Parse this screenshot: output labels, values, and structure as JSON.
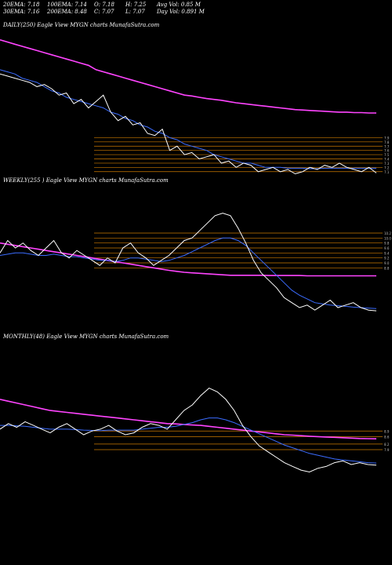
{
  "header": {
    "row1": {
      "ema20": "20EMA: 7.18",
      "ema100": "100EMA: 7.14",
      "open": "O: 7.18",
      "high": "H: 7.25",
      "avgvol": "Avg Vol: 0.85 M"
    },
    "row2": {
      "ema30": "30EMA: 7.16",
      "ema200": "200EMA: 8.48",
      "close": "C: 7.07",
      "low": "L: 7.07",
      "dayvol": "Day Vol: 0.891 M"
    }
  },
  "panels": [
    {
      "id": "daily",
      "label": "DAILY(250) Eagle  View  MYGN  charts MunafaSutra.com"
    },
    {
      "id": "weekly",
      "label": "WEEKLY(255                    ) Eagle  View  MYGN  charts MunafaSutra.com"
    },
    {
      "id": "monthly",
      "label": "MONTHLY(48) Eagle  View  MYGN  charts MunafaSutra.com"
    }
  ],
  "colors": {
    "background": "#000000",
    "price": "#ffffff",
    "ema_short": "#3b6cff",
    "ema_long": "#ff44ff",
    "ema_mid": "#d2a679",
    "level": "#cc7a00"
  },
  "chart_data": [
    {
      "type": "line",
      "title": "DAILY(250) Eagle  View  MYGN  charts MunafaSutra.com",
      "series": [
        {
          "values": [
            9.4,
            9.35,
            9.3,
            9.25,
            9.2,
            9.1,
            9.15,
            9.05,
            8.9,
            8.95,
            8.7,
            8.8,
            8.6,
            8.75,
            8.9,
            8.5,
            8.3,
            8.4,
            8.2,
            8.25,
            8.0,
            7.95,
            8.1,
            7.6,
            7.7,
            7.5,
            7.55,
            7.4,
            7.45,
            7.5,
            7.3,
            7.35,
            7.2,
            7.3,
            7.25,
            7.1,
            7.15,
            7.2,
            7.1,
            7.15,
            7.05,
            7.1,
            7.2,
            7.15,
            7.25,
            7.2,
            7.3,
            7.2,
            7.15,
            7.1,
            7.2,
            7.07
          ]
        },
        {
          "values": [
            9.5,
            9.45,
            9.4,
            9.3,
            9.25,
            9.2,
            9.1,
            9.0,
            8.95,
            8.85,
            8.8,
            8.75,
            8.7,
            8.65,
            8.6,
            8.5,
            8.45,
            8.35,
            8.3,
            8.2,
            8.15,
            8.05,
            8.0,
            7.9,
            7.85,
            7.75,
            7.7,
            7.65,
            7.6,
            7.5,
            7.45,
            7.4,
            7.35,
            7.3,
            7.3,
            7.25,
            7.2,
            7.2,
            7.2,
            7.18,
            7.18,
            7.18,
            7.17,
            7.17,
            7.18,
            7.18,
            7.18,
            7.18,
            7.18,
            7.18,
            7.18,
            7.18
          ]
        },
        {
          "values": [
            10.2,
            10.15,
            10.1,
            10.05,
            10.0,
            9.95,
            9.9,
            9.85,
            9.8,
            9.75,
            9.7,
            9.65,
            9.6,
            9.5,
            9.45,
            9.4,
            9.35,
            9.3,
            9.25,
            9.2,
            9.15,
            9.1,
            9.05,
            9.0,
            8.95,
            8.9,
            8.88,
            8.85,
            8.82,
            8.8,
            8.78,
            8.75,
            8.72,
            8.7,
            8.68,
            8.66,
            8.64,
            8.62,
            8.6,
            8.58,
            8.56,
            8.55,
            8.54,
            8.53,
            8.52,
            8.51,
            8.5,
            8.5,
            8.49,
            8.49,
            8.48,
            8.48
          ]
        }
      ],
      "levels": [
        7.9,
        7.8,
        7.7,
        7.6,
        7.5,
        7.4,
        7.3,
        7.2,
        7.1
      ],
      "ylim": [
        6.8,
        10.4
      ]
    },
    {
      "type": "line",
      "title": "WEEKLY(255                    ) Eagle  View  MYGN  charts MunafaSutra.com",
      "series": [
        {
          "values": [
            9.4,
            9.9,
            9.6,
            9.8,
            9.5,
            9.3,
            9.6,
            9.9,
            9.4,
            9.2,
            9.5,
            9.3,
            9.1,
            8.9,
            9.2,
            9.0,
            9.6,
            9.8,
            9.4,
            9.2,
            8.9,
            9.1,
            9.3,
            9.6,
            9.9,
            10.0,
            10.3,
            10.6,
            10.9,
            11.0,
            10.9,
            10.4,
            9.8,
            9.1,
            8.6,
            8.3,
            8.0,
            7.6,
            7.4,
            7.2,
            7.3,
            7.1,
            7.3,
            7.5,
            7.2,
            7.3,
            7.4,
            7.2,
            7.1,
            7.07
          ]
        },
        {
          "values": [
            9.3,
            9.35,
            9.4,
            9.4,
            9.35,
            9.3,
            9.3,
            9.35,
            9.3,
            9.25,
            9.25,
            9.2,
            9.15,
            9.1,
            9.1,
            9.05,
            9.1,
            9.2,
            9.2,
            9.15,
            9.1,
            9.05,
            9.1,
            9.2,
            9.3,
            9.45,
            9.6,
            9.75,
            9.9,
            10.0,
            10.0,
            9.9,
            9.7,
            9.4,
            9.1,
            8.8,
            8.5,
            8.2,
            7.9,
            7.7,
            7.55,
            7.4,
            7.35,
            7.3,
            7.28,
            7.25,
            7.22,
            7.2,
            7.18,
            7.16
          ]
        },
        {
          "values": [
            9.8,
            9.75,
            9.7,
            9.65,
            9.6,
            9.55,
            9.5,
            9.45,
            9.4,
            9.35,
            9.3,
            9.25,
            9.2,
            9.15,
            9.1,
            9.05,
            9.0,
            8.95,
            8.9,
            8.85,
            8.8,
            8.75,
            8.7,
            8.66,
            8.62,
            8.6,
            8.58,
            8.56,
            8.54,
            8.52,
            8.5,
            8.5,
            8.5,
            8.5,
            8.5,
            8.49,
            8.49,
            8.49,
            8.49,
            8.49,
            8.48,
            8.48,
            8.48,
            8.48,
            8.48,
            8.48,
            8.48,
            8.48,
            8.48,
            8.48
          ]
        }
      ],
      "levels": [
        10.2,
        10.0,
        9.8,
        9.6,
        9.4,
        9.2,
        9.0,
        8.8
      ],
      "ylim": [
        6.0,
        12.0
      ]
    },
    {
      "type": "line",
      "title": "MONTHLY(48) Eagle  View  MYGN  charts MunafaSutra.com",
      "series": [
        {
          "values": [
            9.0,
            9.3,
            9.1,
            9.4,
            9.2,
            9.0,
            8.8,
            9.1,
            9.3,
            9.0,
            8.7,
            8.9,
            9.0,
            9.2,
            8.9,
            8.7,
            8.8,
            9.1,
            9.3,
            9.2,
            9.0,
            9.5,
            10.0,
            10.3,
            10.8,
            11.2,
            11.0,
            10.6,
            10.0,
            9.2,
            8.6,
            8.1,
            7.8,
            7.5,
            7.2,
            7.0,
            6.8,
            6.7,
            6.9,
            7.0,
            7.2,
            7.3,
            7.1,
            7.2,
            7.1,
            7.07
          ]
        },
        {
          "values": [
            9.2,
            9.2,
            9.18,
            9.15,
            9.1,
            9.05,
            9.0,
            9.0,
            9.0,
            8.98,
            8.95,
            8.93,
            8.92,
            8.95,
            8.95,
            8.95,
            8.95,
            9.0,
            9.05,
            9.1,
            9.1,
            9.15,
            9.25,
            9.35,
            9.5,
            9.6,
            9.6,
            9.5,
            9.35,
            9.15,
            8.95,
            8.75,
            8.55,
            8.35,
            8.15,
            8.0,
            7.85,
            7.7,
            7.6,
            7.5,
            7.4,
            7.35,
            7.3,
            7.25,
            7.2,
            7.18
          ]
        },
        {
          "values": [
            10.6,
            10.5,
            10.4,
            10.3,
            10.2,
            10.1,
            10.0,
            9.95,
            9.9,
            9.85,
            9.8,
            9.75,
            9.7,
            9.65,
            9.6,
            9.55,
            9.5,
            9.45,
            9.4,
            9.35,
            9.3,
            9.28,
            9.25,
            9.22,
            9.2,
            9.15,
            9.1,
            9.05,
            9.0,
            8.95,
            8.9,
            8.85,
            8.8,
            8.75,
            8.7,
            8.68,
            8.65,
            8.62,
            8.6,
            8.58,
            8.56,
            8.54,
            8.52,
            8.5,
            8.49,
            8.48
          ]
        }
      ],
      "levels": [
        8.9,
        8.6,
        8.2,
        7.9
      ],
      "ylim": [
        5.5,
        13.5
      ]
    }
  ]
}
